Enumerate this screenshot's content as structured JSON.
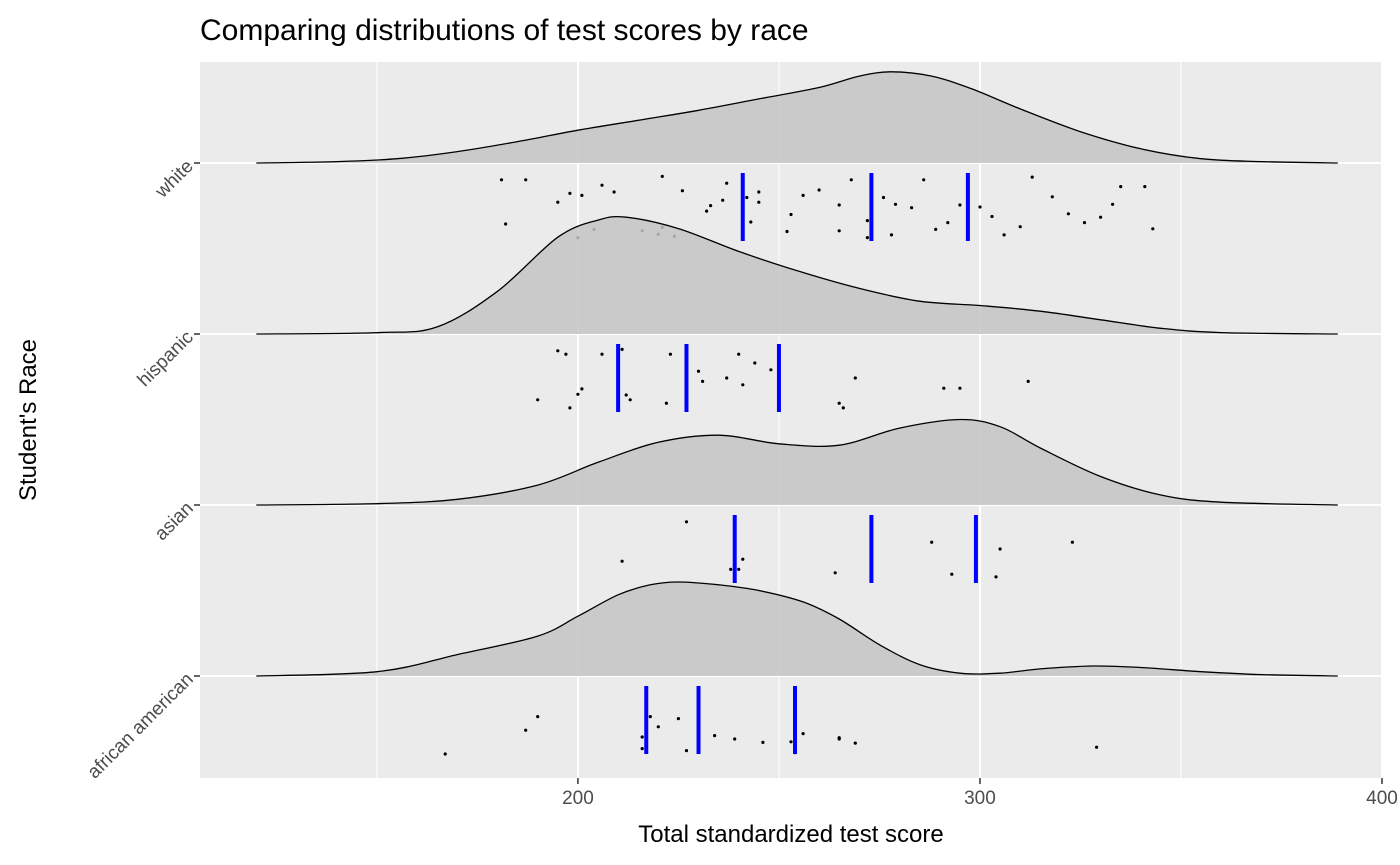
{
  "chart_data": {
    "type": "ridgeline",
    "title": "Comparing distributions of test scores by race",
    "xlabel": "Total standardized test score",
    "ylabel": "Student's Race",
    "xlim": [
      106,
      400
    ],
    "x_ticks": [
      200,
      300,
      400
    ],
    "density_range": [
      120,
      389
    ],
    "grid": true,
    "background": "#ebebeb",
    "fill_color": "#c4c4c4",
    "quantile_color": "#0000ff",
    "categories": [
      "african american",
      "asian",
      "hispanic",
      "white"
    ],
    "groups": [
      {
        "name": "african american",
        "quantiles": [
          217,
          230,
          254
        ],
        "density": [
          [
            120,
            0.0
          ],
          [
            150,
            0.03
          ],
          [
            170,
            0.15
          ],
          [
            190,
            0.28
          ],
          [
            200,
            0.42
          ],
          [
            210,
            0.57
          ],
          [
            218,
            0.64
          ],
          [
            225,
            0.66
          ],
          [
            235,
            0.64
          ],
          [
            245,
            0.6
          ],
          [
            256,
            0.52
          ],
          [
            265,
            0.4
          ],
          [
            275,
            0.22
          ],
          [
            285,
            0.08
          ],
          [
            295,
            0.02
          ],
          [
            305,
            0.02
          ],
          [
            315,
            0.05
          ],
          [
            328,
            0.07
          ],
          [
            340,
            0.06
          ],
          [
            355,
            0.03
          ],
          [
            370,
            0.01
          ],
          [
            389,
            0.0
          ]
        ],
        "points": [
          [
            167,
            0.0
          ],
          [
            187,
            0.35
          ],
          [
            190,
            0.55
          ],
          [
            216,
            0.08
          ],
          [
            216,
            0.25
          ],
          [
            217,
            0.45
          ],
          [
            218,
            0.55
          ],
          [
            220,
            0.4
          ],
          [
            225,
            0.52
          ],
          [
            227,
            0.05
          ],
          [
            234,
            0.27
          ],
          [
            239,
            0.22
          ],
          [
            246,
            0.17
          ],
          [
            253,
            0.18
          ],
          [
            254,
            0.02
          ],
          [
            254,
            0.13
          ],
          [
            256,
            0.3
          ],
          [
            265,
            0.24
          ],
          [
            265,
            0.22
          ],
          [
            269,
            0.16
          ],
          [
            329,
            0.1
          ]
        ]
      },
      {
        "name": "asian",
        "quantiles": [
          239,
          273,
          299
        ],
        "density": [
          [
            120,
            0.0
          ],
          [
            150,
            0.01
          ],
          [
            170,
            0.04
          ],
          [
            190,
            0.14
          ],
          [
            205,
            0.3
          ],
          [
            220,
            0.44
          ],
          [
            235,
            0.49
          ],
          [
            250,
            0.43
          ],
          [
            265,
            0.42
          ],
          [
            280,
            0.54
          ],
          [
            295,
            0.6
          ],
          [
            305,
            0.55
          ],
          [
            315,
            0.4
          ],
          [
            330,
            0.2
          ],
          [
            345,
            0.07
          ],
          [
            360,
            0.02
          ],
          [
            389,
            0.0
          ]
        ],
        "points": [
          [
            211,
            0.32
          ],
          [
            227,
            0.9
          ],
          [
            238,
            0.2
          ],
          [
            240,
            0.2
          ],
          [
            241,
            0.35
          ],
          [
            264,
            0.15
          ],
          [
            288,
            0.6
          ],
          [
            293,
            0.13
          ],
          [
            304,
            0.09
          ],
          [
            305,
            0.5
          ],
          [
            323,
            0.6
          ]
        ]
      },
      {
        "name": "hispanic",
        "quantiles": [
          210,
          227,
          250
        ],
        "density": [
          [
            120,
            0.0
          ],
          [
            150,
            0.01
          ],
          [
            165,
            0.05
          ],
          [
            180,
            0.3
          ],
          [
            195,
            0.68
          ],
          [
            205,
            0.8
          ],
          [
            212,
            0.82
          ],
          [
            225,
            0.74
          ],
          [
            240,
            0.58
          ],
          [
            255,
            0.44
          ],
          [
            270,
            0.32
          ],
          [
            285,
            0.23
          ],
          [
            300,
            0.2
          ],
          [
            315,
            0.16
          ],
          [
            330,
            0.1
          ],
          [
            345,
            0.04
          ],
          [
            360,
            0.01
          ],
          [
            389,
            0.0
          ]
        ],
        "points": [
          [
            190,
            0.18
          ],
          [
            195,
            0.9
          ],
          [
            197,
            0.85
          ],
          [
            198,
            0.06
          ],
          [
            200,
            0.26
          ],
          [
            201,
            0.34
          ],
          [
            206,
            0.85
          ],
          [
            211,
            0.92
          ],
          [
            212,
            0.25
          ],
          [
            213,
            0.18
          ],
          [
            222,
            0.13
          ],
          [
            223,
            0.85
          ],
          [
            227,
            0.9
          ],
          [
            230,
            0.6
          ],
          [
            231,
            0.45
          ],
          [
            237,
            0.5
          ],
          [
            240,
            0.85
          ],
          [
            241,
            0.4
          ],
          [
            244,
            0.72
          ],
          [
            248,
            0.62
          ],
          [
            265,
            0.13
          ],
          [
            266,
            0.06
          ],
          [
            269,
            0.5
          ],
          [
            291,
            0.35
          ],
          [
            295,
            0.35
          ],
          [
            312,
            0.45
          ]
        ]
      },
      {
        "name": "white",
        "quantiles": [
          241,
          273,
          297
        ],
        "density": [
          [
            120,
            0.0
          ],
          [
            140,
            0.01
          ],
          [
            155,
            0.03
          ],
          [
            170,
            0.08
          ],
          [
            185,
            0.15
          ],
          [
            200,
            0.23
          ],
          [
            215,
            0.3
          ],
          [
            230,
            0.37
          ],
          [
            245,
            0.45
          ],
          [
            260,
            0.53
          ],
          [
            270,
            0.61
          ],
          [
            278,
            0.64
          ],
          [
            288,
            0.61
          ],
          [
            298,
            0.52
          ],
          [
            310,
            0.38
          ],
          [
            325,
            0.22
          ],
          [
            340,
            0.1
          ],
          [
            355,
            0.03
          ],
          [
            370,
            0.01
          ],
          [
            389,
            0.0
          ]
        ],
        "points": [
          [
            181,
            0.9
          ],
          [
            182,
            0.25
          ],
          [
            187,
            0.9
          ],
          [
            195,
            0.57
          ],
          [
            198,
            0.7
          ],
          [
            200,
            0.05
          ],
          [
            201,
            0.67
          ],
          [
            204,
            0.17
          ],
          [
            206,
            0.82
          ],
          [
            209,
            0.72
          ],
          [
            216,
            0.15
          ],
          [
            220,
            0.1
          ],
          [
            221,
            0.2
          ],
          [
            221,
            0.95
          ],
          [
            224,
            0.07
          ],
          [
            226,
            0.74
          ],
          [
            232,
            0.44
          ],
          [
            233,
            0.52
          ],
          [
            236,
            0.6
          ],
          [
            237,
            0.85
          ],
          [
            242,
            0.64
          ],
          [
            243,
            0.28
          ],
          [
            245,
            0.57
          ],
          [
            245,
            0.72
          ],
          [
            252,
            0.14
          ],
          [
            253,
            0.39
          ],
          [
            256,
            0.67
          ],
          [
            260,
            0.75
          ],
          [
            265,
            0.15
          ],
          [
            265,
            0.53
          ],
          [
            268,
            0.9
          ],
          [
            272,
            0.3
          ],
          [
            272,
            0.05
          ],
          [
            273,
            0.74
          ],
          [
            276,
            0.64
          ],
          [
            278,
            0.09
          ],
          [
            279,
            0.54
          ],
          [
            283,
            0.49
          ],
          [
            286,
            0.9
          ],
          [
            289,
            0.17
          ],
          [
            292,
            0.27
          ],
          [
            295,
            0.53
          ],
          [
            297,
            0.81
          ],
          [
            300,
            0.5
          ],
          [
            303,
            0.36
          ],
          [
            306,
            0.09
          ],
          [
            310,
            0.21
          ],
          [
            313,
            0.94
          ],
          [
            318,
            0.65
          ],
          [
            322,
            0.4
          ],
          [
            326,
            0.27
          ],
          [
            330,
            0.35
          ],
          [
            333,
            0.54
          ],
          [
            335,
            0.8
          ],
          [
            341,
            0.8
          ],
          [
            343,
            0.18
          ]
        ]
      }
    ]
  }
}
